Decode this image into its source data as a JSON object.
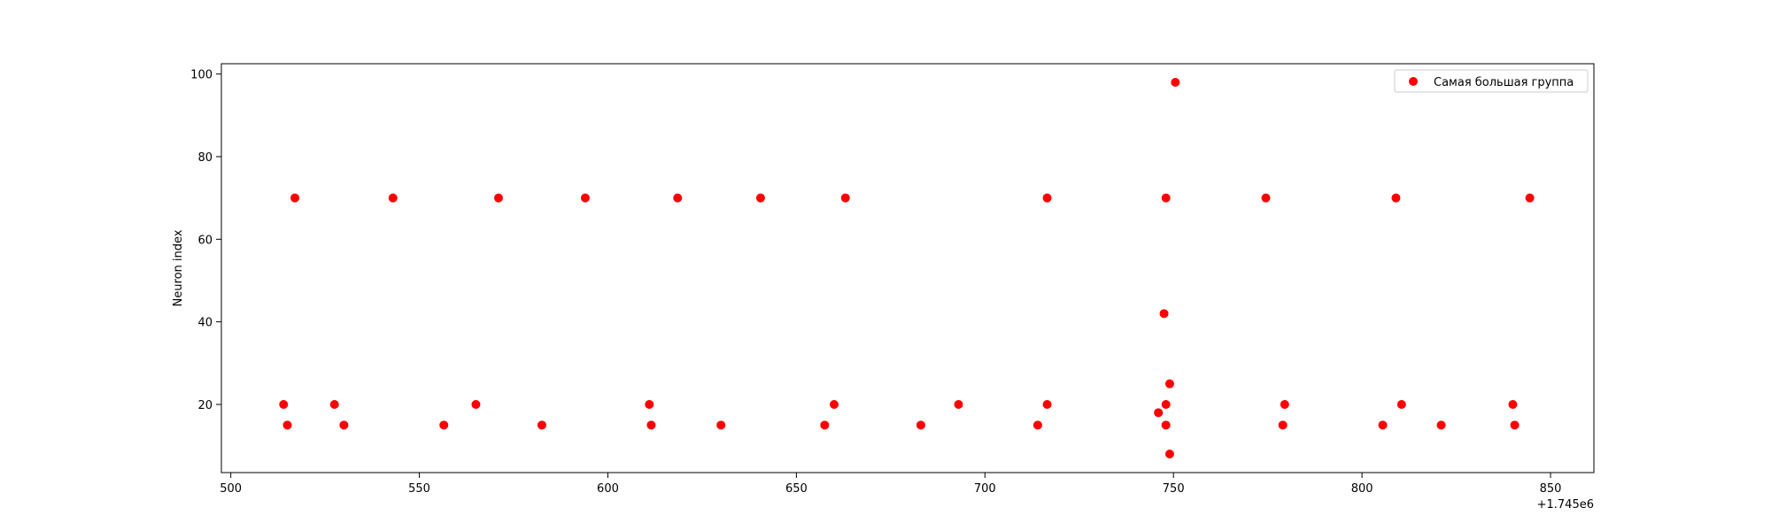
{
  "chart_data": {
    "type": "scatter",
    "title": "",
    "xlabel": "",
    "ylabel": "Neuron index",
    "x_offset_label": "+1.745e6",
    "xlim": [
      497.5,
      861.5
    ],
    "ylim": [
      3.5,
      102.5
    ],
    "x_ticks": [
      500,
      550,
      600,
      650,
      700,
      750,
      800,
      850
    ],
    "y_ticks": [
      20,
      40,
      60,
      80,
      100
    ],
    "grid": false,
    "legend_position": "top-right",
    "series": [
      {
        "name": "Самая большая группа",
        "color": "#ff0000",
        "points": [
          [
            517.0,
            70
          ],
          [
            543.0,
            70
          ],
          [
            571.0,
            70
          ],
          [
            594.0,
            70
          ],
          [
            618.5,
            70
          ],
          [
            640.5,
            70
          ],
          [
            663.0,
            70
          ],
          [
            716.5,
            70
          ],
          [
            748.0,
            70
          ],
          [
            774.5,
            70
          ],
          [
            809.0,
            70
          ],
          [
            844.5,
            70
          ],
          [
            750.5,
            98
          ],
          [
            747.5,
            42
          ],
          [
            749.0,
            25
          ],
          [
            514.0,
            20
          ],
          [
            527.5,
            20
          ],
          [
            565.0,
            20
          ],
          [
            611.0,
            20
          ],
          [
            660.0,
            20
          ],
          [
            693.0,
            20
          ],
          [
            716.5,
            20
          ],
          [
            748.0,
            20
          ],
          [
            779.5,
            20
          ],
          [
            810.5,
            20
          ],
          [
            840.0,
            20
          ],
          [
            515.0,
            15
          ],
          [
            530.0,
            15
          ],
          [
            556.5,
            15
          ],
          [
            582.5,
            15
          ],
          [
            611.5,
            15
          ],
          [
            630.0,
            15
          ],
          [
            657.5,
            15
          ],
          [
            683.0,
            15
          ],
          [
            714.0,
            15
          ],
          [
            748.0,
            15
          ],
          [
            779.0,
            15
          ],
          [
            805.5,
            15
          ],
          [
            821.0,
            15
          ],
          [
            840.5,
            15
          ],
          [
            746.0,
            18
          ],
          [
            749.0,
            8
          ]
        ]
      }
    ]
  }
}
